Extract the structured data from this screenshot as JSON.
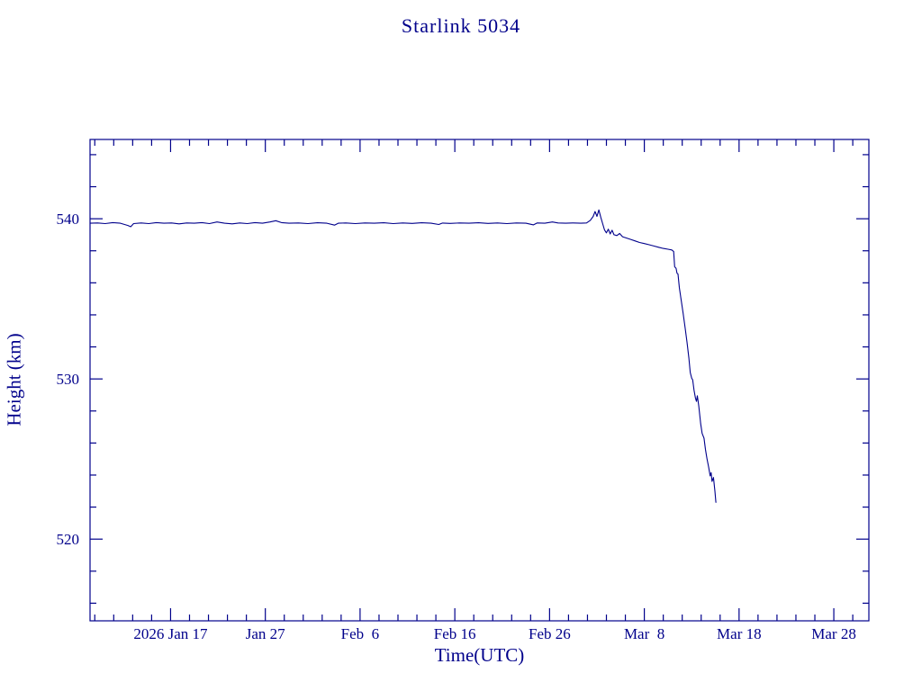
{
  "chart_data": {
    "type": "line",
    "title": "Starlink 5034",
    "xlabel": "Time(UTC)",
    "ylabel": "Height (km)",
    "axis_color": "#00008b",
    "line_color": "#00008b",
    "background": "#ffffff",
    "grid": false,
    "legend": "none",
    "xlim": [
      0,
      82.2
    ],
    "ylim": [
      514.9,
      544.95
    ],
    "x_unit": "days along axis (ticks every 10 days)",
    "y_unit": "km",
    "x_major_ticks": [
      {
        "pos": 8.5,
        "label": "2026 Jan 17"
      },
      {
        "pos": 18.5,
        "label": "Jan 27"
      },
      {
        "pos": 28.5,
        "label": "Feb  6"
      },
      {
        "pos": 38.5,
        "label": "Feb 16"
      },
      {
        "pos": 48.5,
        "label": "Feb 26"
      },
      {
        "pos": 58.5,
        "label": "Mar  8"
      },
      {
        "pos": 68.5,
        "label": "Mar 18"
      },
      {
        "pos": 78.5,
        "label": "Mar 28"
      }
    ],
    "x_minor_start": 0.5,
    "x_minor_step": 2,
    "y_major_ticks": [
      {
        "pos": 520,
        "label": "520"
      },
      {
        "pos": 530,
        "label": "530"
      },
      {
        "pos": 540,
        "label": "540"
      }
    ],
    "y_minor_start": 516,
    "y_minor_step": 2,
    "points": [
      [
        0,
        539.72
      ],
      [
        0.8,
        539.74
      ],
      [
        1.6,
        539.7
      ],
      [
        2.4,
        539.76
      ],
      [
        3.2,
        539.72
      ],
      [
        4.0,
        539.58
      ],
      [
        4.3,
        539.5
      ],
      [
        4.6,
        539.7
      ],
      [
        5.4,
        539.74
      ],
      [
        6.2,
        539.7
      ],
      [
        7.0,
        539.76
      ],
      [
        7.8,
        539.72
      ],
      [
        8.6,
        539.74
      ],
      [
        9.4,
        539.68
      ],
      [
        10.2,
        539.74
      ],
      [
        11.0,
        539.72
      ],
      [
        11.8,
        539.76
      ],
      [
        12.6,
        539.7
      ],
      [
        13.4,
        539.8
      ],
      [
        14.2,
        539.72
      ],
      [
        15.0,
        539.68
      ],
      [
        15.8,
        539.74
      ],
      [
        16.6,
        539.7
      ],
      [
        17.4,
        539.76
      ],
      [
        18.2,
        539.72
      ],
      [
        19.0,
        539.8
      ],
      [
        19.6,
        539.88
      ],
      [
        20.2,
        539.76
      ],
      [
        21.0,
        539.72
      ],
      [
        22.0,
        539.74
      ],
      [
        23.0,
        539.7
      ],
      [
        24.0,
        539.75
      ],
      [
        25.0,
        539.72
      ],
      [
        25.8,
        539.6
      ],
      [
        26.2,
        539.72
      ],
      [
        27.0,
        539.74
      ],
      [
        28.0,
        539.7
      ],
      [
        29.0,
        539.74
      ],
      [
        30.0,
        539.72
      ],
      [
        31.0,
        539.75
      ],
      [
        32.0,
        539.7
      ],
      [
        33.0,
        539.74
      ],
      [
        34.0,
        539.71
      ],
      [
        35.0,
        539.75
      ],
      [
        36.0,
        539.72
      ],
      [
        36.8,
        539.64
      ],
      [
        37.2,
        539.73
      ],
      [
        38.0,
        539.71
      ],
      [
        39.0,
        539.74
      ],
      [
        40.0,
        539.72
      ],
      [
        41.0,
        539.75
      ],
      [
        42.0,
        539.71
      ],
      [
        43.0,
        539.74
      ],
      [
        44.0,
        539.7
      ],
      [
        45.0,
        539.74
      ],
      [
        46.0,
        539.72
      ],
      [
        46.8,
        539.62
      ],
      [
        47.2,
        539.74
      ],
      [
        48.0,
        539.72
      ],
      [
        48.8,
        539.8
      ],
      [
        49.4,
        539.74
      ],
      [
        50.2,
        539.72
      ],
      [
        51.0,
        539.74
      ],
      [
        51.8,
        539.72
      ],
      [
        52.4,
        539.74
      ],
      [
        52.8,
        539.9
      ],
      [
        53.1,
        540.15
      ],
      [
        53.3,
        540.45
      ],
      [
        53.5,
        540.15
      ],
      [
        53.7,
        540.55
      ],
      [
        53.9,
        540.1
      ],
      [
        54.1,
        539.7
      ],
      [
        54.3,
        539.3
      ],
      [
        54.5,
        539.12
      ],
      [
        54.7,
        539.35
      ],
      [
        54.9,
        539.05
      ],
      [
        55.1,
        539.28
      ],
      [
        55.3,
        539.0
      ],
      [
        55.6,
        538.95
      ],
      [
        55.9,
        539.08
      ],
      [
        56.2,
        538.88
      ],
      [
        56.6,
        538.8
      ],
      [
        57.0,
        538.72
      ],
      [
        57.5,
        538.62
      ],
      [
        58.0,
        538.52
      ],
      [
        58.5,
        538.45
      ],
      [
        59.0,
        538.38
      ],
      [
        59.5,
        538.3
      ],
      [
        60.0,
        538.22
      ],
      [
        60.5,
        538.15
      ],
      [
        61.0,
        538.1
      ],
      [
        61.4,
        538.05
      ],
      [
        61.6,
        537.95
      ],
      [
        61.7,
        537.0
      ],
      [
        61.85,
        536.9
      ],
      [
        61.95,
        536.6
      ],
      [
        62.05,
        536.55
      ],
      [
        62.2,
        535.7
      ],
      [
        62.4,
        534.9
      ],
      [
        62.6,
        534.1
      ],
      [
        62.8,
        533.2
      ],
      [
        63.0,
        532.3
      ],
      [
        63.2,
        531.3
      ],
      [
        63.35,
        530.4
      ],
      [
        63.5,
        530.05
      ],
      [
        63.6,
        529.95
      ],
      [
        63.75,
        529.3
      ],
      [
        63.9,
        528.8
      ],
      [
        64.0,
        528.6
      ],
      [
        64.1,
        528.95
      ],
      [
        64.25,
        528.3
      ],
      [
        64.45,
        527.2
      ],
      [
        64.6,
        526.6
      ],
      [
        64.8,
        526.3
      ],
      [
        64.95,
        525.6
      ],
      [
        65.1,
        525.05
      ],
      [
        65.3,
        524.45
      ],
      [
        65.45,
        523.95
      ],
      [
        65.55,
        524.15
      ],
      [
        65.65,
        523.6
      ],
      [
        65.8,
        523.85
      ],
      [
        65.95,
        523.0
      ],
      [
        66.05,
        522.3
      ]
    ]
  }
}
